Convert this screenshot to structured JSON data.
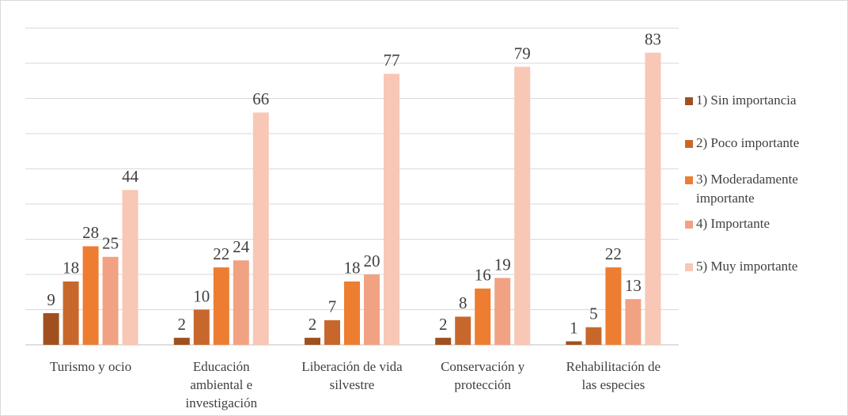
{
  "chart_data": {
    "type": "bar",
    "categories": [
      "Turismo y ocio",
      "Educación ambiental e investigación",
      "Liberación de vida silvestre",
      "Conservación y protección",
      "Rehabilitación de las especies"
    ],
    "series": [
      {
        "name": "1) Sin importancia",
        "color": "#a0501e",
        "values": [
          9,
          2,
          2,
          2,
          1
        ]
      },
      {
        "name": "2) Poco importante",
        "color": "#c8672c",
        "values": [
          18,
          10,
          7,
          8,
          5
        ]
      },
      {
        "name": "3) Moderadamente importante",
        "color": "#ed7d31",
        "values": [
          28,
          22,
          18,
          16,
          22
        ]
      },
      {
        "name": "4) Importante",
        "color": "#f1a283",
        "values": [
          25,
          24,
          20,
          19,
          13
        ]
      },
      {
        "name": "5) Muy importante",
        "color": "#f8c7b6",
        "values": [
          44,
          66,
          77,
          79,
          83
        ]
      }
    ],
    "ylim": [
      0,
      90
    ],
    "yticks": [
      0,
      10,
      20,
      30,
      40,
      50,
      60,
      70,
      80,
      90
    ],
    "grid": true,
    "legend": "right"
  }
}
